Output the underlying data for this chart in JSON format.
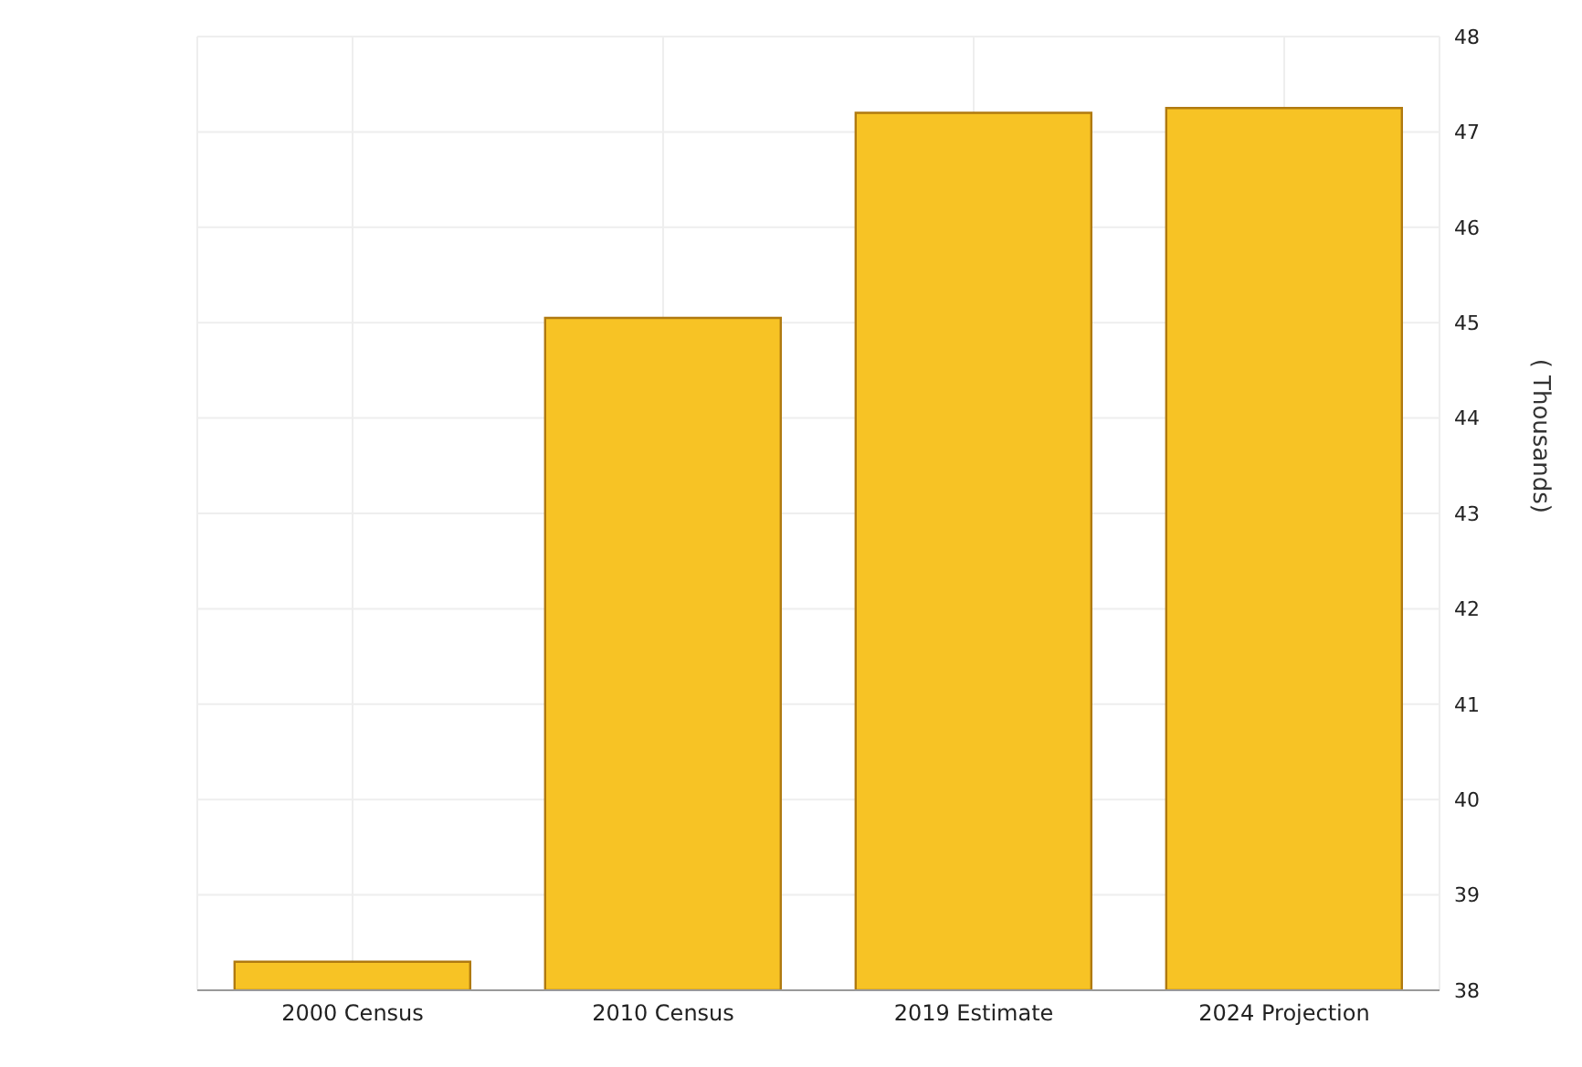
{
  "chart_data": {
    "type": "bar",
    "ylabel": "( Thousands)",
    "categories": [
      "2000 Census",
      "2010 Census",
      "2019 Estimate",
      "2024 Projection"
    ],
    "values": [
      38.3,
      45.05,
      47.2,
      47.25
    ],
    "color": "#f7c325",
    "ylim": [
      38,
      48
    ],
    "yticks": [
      38,
      39,
      40,
      41,
      42,
      43,
      44,
      45,
      46,
      47,
      48
    ],
    "grid": true
  }
}
